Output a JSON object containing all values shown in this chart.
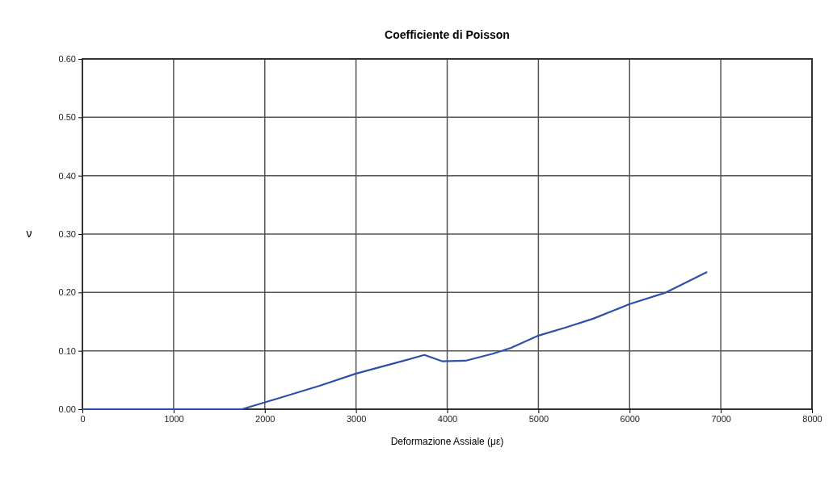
{
  "chart_data": {
    "type": "line",
    "title": "Coefficiente di Poisson",
    "xlabel": "Deformazione Assiale (με)",
    "ylabel": "ν",
    "xlim": [
      0,
      8000
    ],
    "xticks": [
      0,
      1000,
      2000,
      3000,
      4000,
      5000,
      6000,
      7000,
      8000
    ],
    "ylim": [
      0,
      0.6
    ],
    "yticks": [
      {
        "value": 0,
        "label": "0.00"
      },
      {
        "value": 0.1,
        "label": "0.10"
      },
      {
        "value": 0.2,
        "label": "0.20"
      },
      {
        "value": 0.3,
        "label": "0.30"
      },
      {
        "value": 0.4,
        "label": "0.40"
      },
      {
        "value": 0.5,
        "label": "0.50"
      },
      {
        "value": 0.6,
        "label": "0.60"
      }
    ],
    "grid": true,
    "marker": "none",
    "line_style": "solid",
    "series": [
      {
        "color": "#2f4fa8",
        "x": [
          0,
          1750,
          2200,
          2600,
          3000,
          3500,
          3750,
          3950,
          4200,
          4500,
          4700,
          5000,
          5300,
          5600,
          6000,
          6400,
          6850
        ],
        "values": [
          0,
          0,
          0.021,
          0.04,
          0.061,
          0.082,
          0.093,
          0.082,
          0.083,
          0.095,
          0.105,
          0.126,
          0.14,
          0.155,
          0.18,
          0.2,
          0.235
        ]
      }
    ]
  }
}
